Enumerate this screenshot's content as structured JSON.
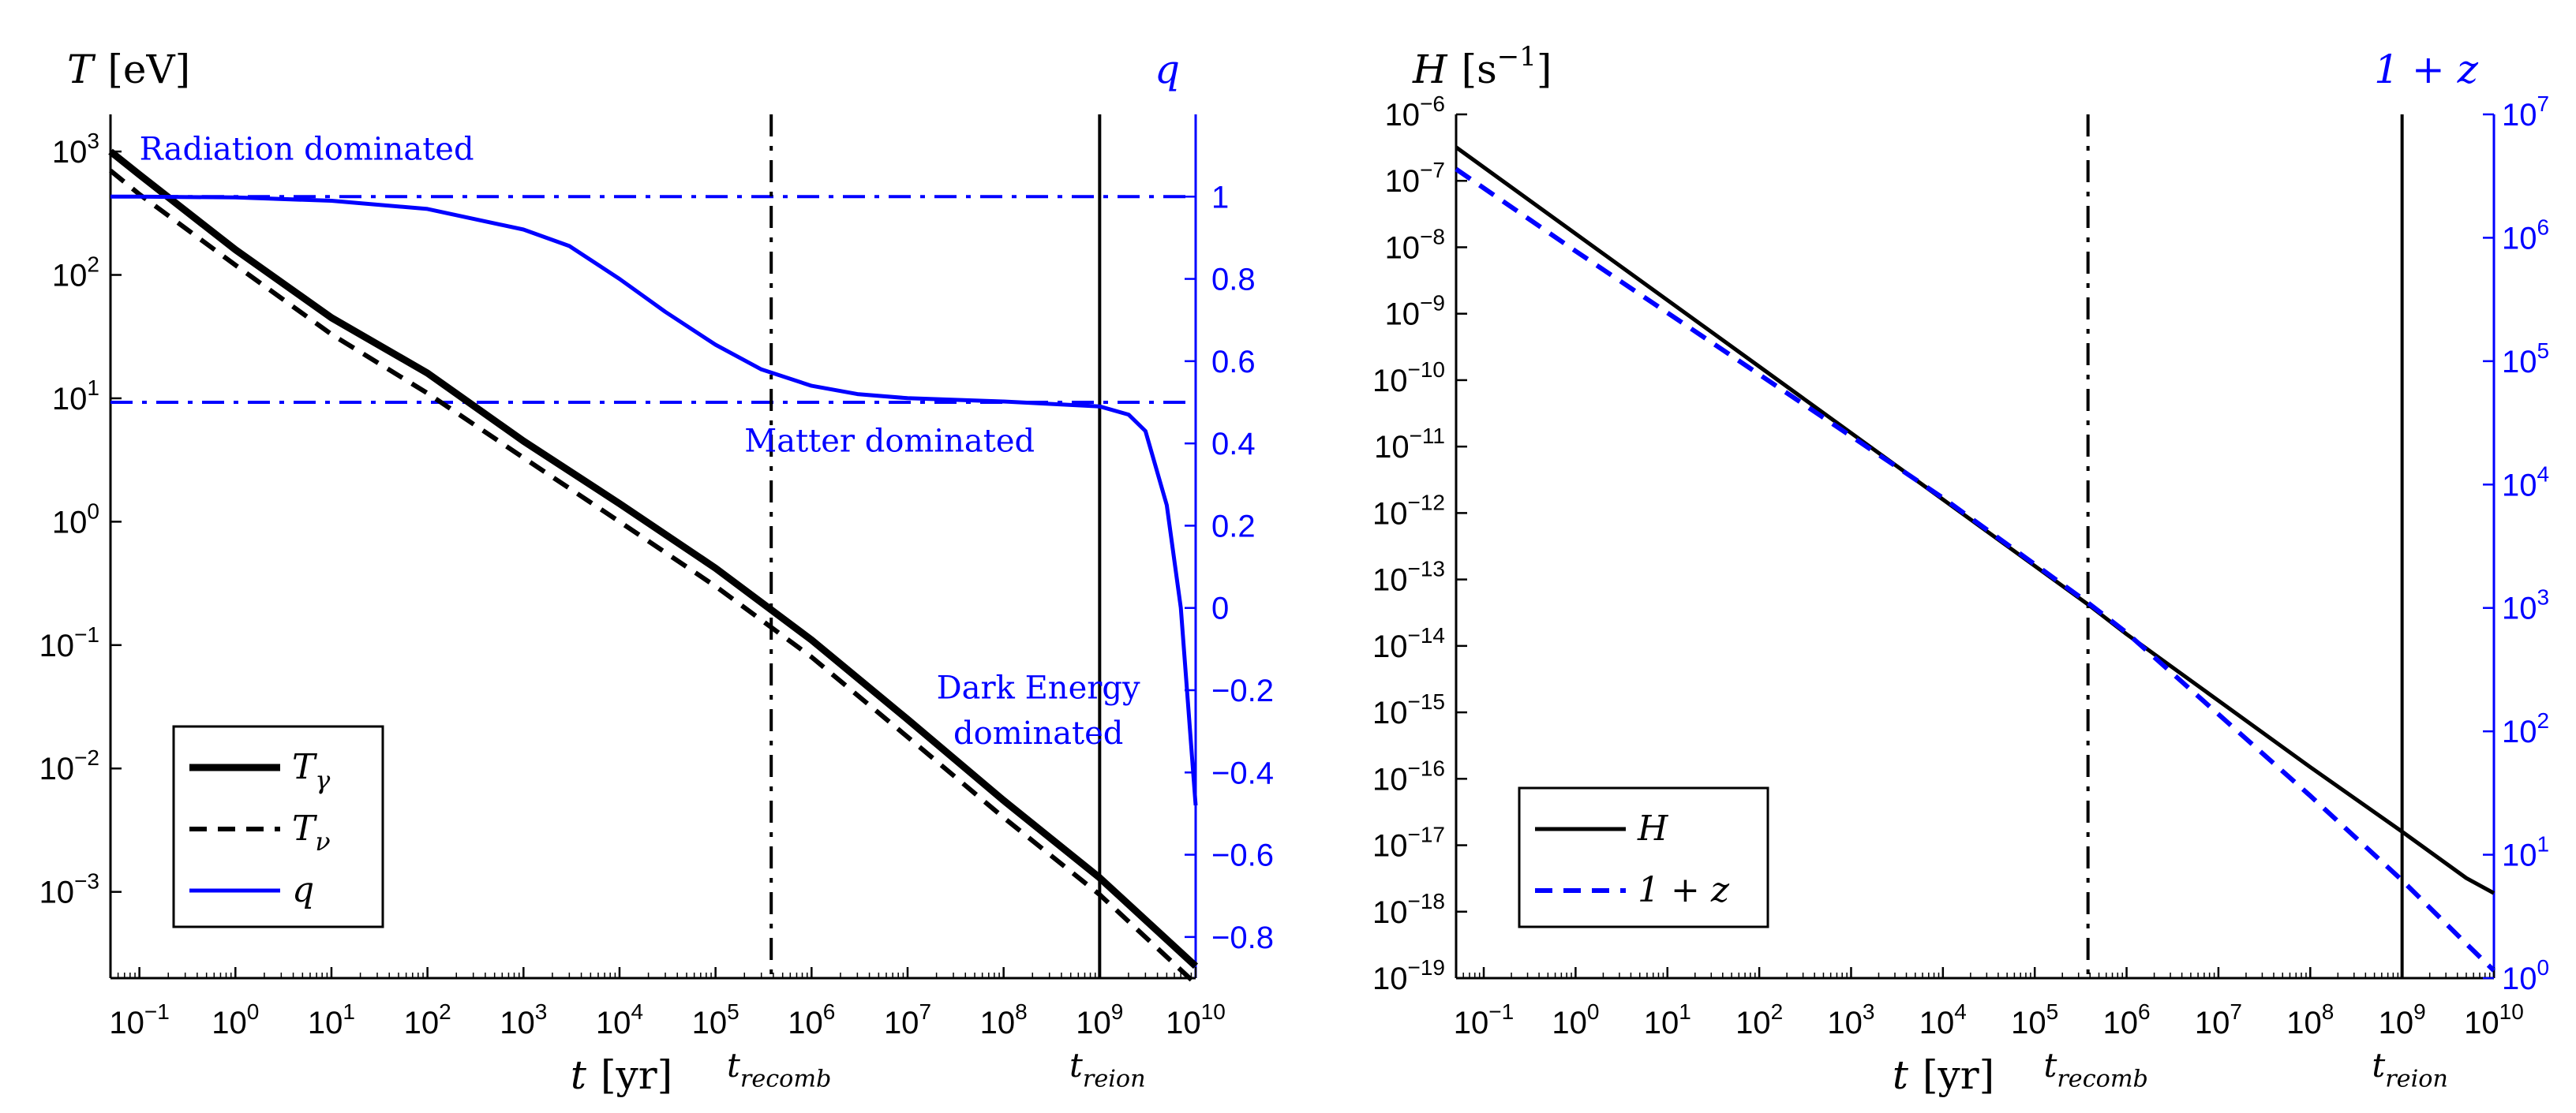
{
  "chart_data": [
    {
      "type": "line",
      "title": "",
      "xlabel": "t",
      "xlabel_unit": "[yr]",
      "ylabel": "T",
      "ylabel_unit": "[eV]",
      "y2label": "q",
      "x_scale": "log",
      "y_scale": "log",
      "xlim": [
        0.05,
        10000000000
      ],
      "ylim": [
        0.0002,
        2000
      ],
      "y2lim": [
        -0.9,
        1.2
      ],
      "x_ticks": [
        {
          "value": 0.1,
          "base": "10",
          "exp": "−1"
        },
        {
          "value": 1,
          "base": "10",
          "exp": "0"
        },
        {
          "value": 10,
          "base": "10",
          "exp": "1"
        },
        {
          "value": 100,
          "base": "10",
          "exp": "2"
        },
        {
          "value": 1000,
          "base": "10",
          "exp": "3"
        },
        {
          "value": 10000,
          "base": "10",
          "exp": "4"
        },
        {
          "value": 100000,
          "base": "10",
          "exp": "5"
        },
        {
          "value": 1000000,
          "base": "10",
          "exp": "6"
        },
        {
          "value": 10000000,
          "base": "10",
          "exp": "7"
        },
        {
          "value": 100000000,
          "base": "10",
          "exp": "8"
        },
        {
          "value": 1000000000,
          "base": "10",
          "exp": "9"
        },
        {
          "value": 10000000000,
          "base": "10",
          "exp": "10"
        }
      ],
      "y_ticks": [
        {
          "value": 0.001,
          "base": "10",
          "exp": "−3"
        },
        {
          "value": 0.01,
          "base": "10",
          "exp": "−2"
        },
        {
          "value": 0.1,
          "base": "10",
          "exp": "−1"
        },
        {
          "value": 1,
          "base": "10",
          "exp": "0"
        },
        {
          "value": 10,
          "base": "10",
          "exp": "1"
        },
        {
          "value": 100,
          "base": "10",
          "exp": "2"
        },
        {
          "value": 1000,
          "base": "10",
          "exp": "3"
        }
      ],
      "y2_ticks": [
        {
          "value": 1,
          "label": "1"
        },
        {
          "value": 0.8,
          "label": "0.8"
        },
        {
          "value": 0.6,
          "label": "0.6"
        },
        {
          "value": 0.4,
          "label": "0.4"
        },
        {
          "value": 0.2,
          "label": "0.2"
        },
        {
          "value": 0,
          "label": "0"
        },
        {
          "value": -0.2,
          "label": "−0.2"
        },
        {
          "value": -0.4,
          "label": "−0.4"
        },
        {
          "value": -0.6,
          "label": "−0.6"
        },
        {
          "value": -0.8,
          "label": "−0.8"
        }
      ],
      "vlines": [
        {
          "x": 380000,
          "style": "dashdot",
          "label": "t",
          "sub": "recomb"
        },
        {
          "x": 1000000000,
          "style": "solid",
          "label": "t",
          "sub": "reion"
        }
      ],
      "hlines_y2": [
        {
          "y": 1,
          "style": "dashdot",
          "color": "#0000ff"
        },
        {
          "y": 0.5,
          "style": "dashdot",
          "color": "#0000ff"
        }
      ],
      "annotations": [
        {
          "text": "Radiation dominated",
          "x": 0.1,
          "y2": 1.09
        },
        {
          "text": "Matter dominated",
          "x": 200000,
          "y2": 0.38
        },
        {
          "text": "Dark Energy",
          "x": 20000000,
          "y2": -0.22
        },
        {
          "text": "dominated",
          "x": 30000000,
          "y2": -0.33
        }
      ],
      "series": [
        {
          "name": "T",
          "sub": "γ",
          "axis": "left",
          "color": "#000000",
          "style": "thick-solid",
          "x": [
            0.05,
            0.1,
            1,
            10,
            100,
            1000,
            10000,
            100000,
            1000000,
            10000000,
            100000000,
            1000000000,
            10000000000
          ],
          "y": [
            1000,
            650,
            160,
            45,
            16,
            4.5,
            1.4,
            0.42,
            0.11,
            0.025,
            0.0055,
            0.0013,
            0.00025
          ]
        },
        {
          "name": "T",
          "sub": "ν",
          "axis": "left",
          "color": "#000000",
          "style": "dashed",
          "x": [
            0.05,
            0.1,
            1,
            10,
            100,
            1000,
            10000,
            100000,
            1000000,
            10000000,
            100000000,
            1000000000,
            10000000000
          ],
          "y": [
            700,
            450,
            120,
            33,
            11,
            3.3,
            1.0,
            0.3,
            0.08,
            0.018,
            0.004,
            0.00095,
            0.00018
          ]
        },
        {
          "name": "q",
          "axis": "right",
          "color": "#0000ff",
          "style": "solid",
          "x": [
            0.05,
            0.1,
            1,
            10,
            100,
            1000,
            3000,
            10000,
            30000,
            100000,
            300000,
            1000000,
            3000000,
            10000000,
            100000000,
            1000000000,
            2000000000,
            3000000000,
            5000000000,
            7000000000,
            10000000000
          ],
          "y": [
            1.0,
            1.0,
            0.998,
            0.99,
            0.97,
            0.92,
            0.88,
            0.8,
            0.72,
            0.64,
            0.58,
            0.54,
            0.52,
            0.51,
            0.502,
            0.49,
            0.47,
            0.43,
            0.25,
            0.0,
            -0.48
          ]
        }
      ],
      "legend": {
        "placement": "lower-left"
      }
    },
    {
      "type": "line",
      "title": "",
      "xlabel": "t",
      "xlabel_unit": "[yr]",
      "ylabel": "H",
      "ylabel_unit": "[s",
      "ylabel_unit_exp": "−1",
      "ylabel_unit_close": "]",
      "y2label": "1 + z",
      "x_scale": "log",
      "y_scale": "log",
      "y2_scale": "log",
      "xlim": [
        0.05,
        10000000000
      ],
      "ylim": [
        1e-19,
        1e-06
      ],
      "y2lim": [
        1,
        10000000
      ],
      "x_ticks": [
        {
          "value": 0.1,
          "base": "10",
          "exp": "−1"
        },
        {
          "value": 1,
          "base": "10",
          "exp": "0"
        },
        {
          "value": 10,
          "base": "10",
          "exp": "1"
        },
        {
          "value": 100,
          "base": "10",
          "exp": "2"
        },
        {
          "value": 1000,
          "base": "10",
          "exp": "3"
        },
        {
          "value": 10000,
          "base": "10",
          "exp": "4"
        },
        {
          "value": 100000,
          "base": "10",
          "exp": "5"
        },
        {
          "value": 1000000,
          "base": "10",
          "exp": "6"
        },
        {
          "value": 10000000,
          "base": "10",
          "exp": "7"
        },
        {
          "value": 100000000,
          "base": "10",
          "exp": "8"
        },
        {
          "value": 1000000000,
          "base": "10",
          "exp": "9"
        },
        {
          "value": 10000000000,
          "base": "10",
          "exp": "10"
        }
      ],
      "y_ticks": [
        {
          "value": 1e-19,
          "base": "10",
          "exp": "−19"
        },
        {
          "value": 1e-18,
          "base": "10",
          "exp": "−18"
        },
        {
          "value": 1e-17,
          "base": "10",
          "exp": "−17"
        },
        {
          "value": 1e-16,
          "base": "10",
          "exp": "−16"
        },
        {
          "value": 1e-15,
          "base": "10",
          "exp": "−15"
        },
        {
          "value": 1e-14,
          "base": "10",
          "exp": "−14"
        },
        {
          "value": 1e-13,
          "base": "10",
          "exp": "−13"
        },
        {
          "value": 1e-12,
          "base": "10",
          "exp": "−12"
        },
        {
          "value": 1e-11,
          "base": "10",
          "exp": "−11"
        },
        {
          "value": 1e-10,
          "base": "10",
          "exp": "−10"
        },
        {
          "value": 1e-09,
          "base": "10",
          "exp": "−9"
        },
        {
          "value": 1e-08,
          "base": "10",
          "exp": "−8"
        },
        {
          "value": 1e-07,
          "base": "10",
          "exp": "−7"
        },
        {
          "value": 1e-06,
          "base": "10",
          "exp": "−6"
        }
      ],
      "y2_ticks": [
        {
          "value": 1,
          "base": "10",
          "exp": "0"
        },
        {
          "value": 10,
          "base": "10",
          "exp": "1"
        },
        {
          "value": 100,
          "base": "10",
          "exp": "2"
        },
        {
          "value": 1000,
          "base": "10",
          "exp": "3"
        },
        {
          "value": 10000,
          "base": "10",
          "exp": "4"
        },
        {
          "value": 100000,
          "base": "10",
          "exp": "5"
        },
        {
          "value": 1000000,
          "base": "10",
          "exp": "6"
        },
        {
          "value": 10000000,
          "base": "10",
          "exp": "7"
        }
      ],
      "vlines": [
        {
          "x": 380000,
          "style": "dashdot",
          "label": "t",
          "sub": "recomb"
        },
        {
          "x": 1000000000,
          "style": "solid",
          "label": "t",
          "sub": "reion"
        }
      ],
      "series": [
        {
          "name": "H",
          "axis": "left",
          "color": "#000000",
          "style": "solid",
          "x": [
            0.05,
            1,
            100,
            10000,
            380000,
            1000000,
            100000000,
            1000000000,
            5000000000,
            10000000000
          ],
          "y": [
            3.2e-07,
            1.6e-08,
            1.6e-10,
            1.6e-12,
            4.2e-14,
            1.5e-14,
            1.5e-16,
            1.6e-17,
            3.2e-18,
            1.9e-18
          ]
        },
        {
          "name": "1 + z",
          "axis": "right",
          "color": "#0000ff",
          "style": "dashed",
          "x": [
            0.05,
            1,
            100,
            10000,
            380000,
            1000000,
            100000000,
            1000000000,
            5000000000,
            10000000000
          ],
          "y": [
            3600000,
            780000,
            78000,
            7800,
            1100,
            630,
            30,
            6.2,
            1.9,
            1.15
          ]
        }
      ],
      "legend": {
        "placement": "lower-left"
      }
    }
  ]
}
